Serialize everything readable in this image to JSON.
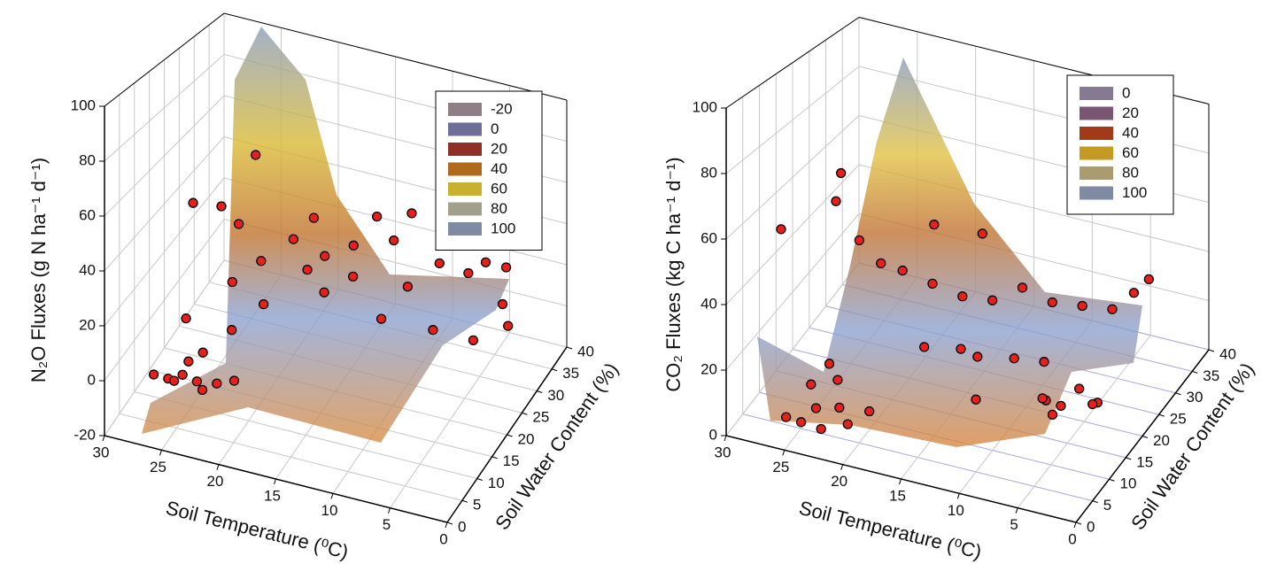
{
  "chart_data": [
    {
      "type": "scatter3d",
      "xlabel": "Soil Temperature (⁰C)",
      "ylabel": "Soil Water Content (%)",
      "zlabel": "N₂O Fluxes (g N ha⁻¹ d⁻¹)",
      "xlim": [
        0,
        30
      ],
      "xticks": [
        0,
        5,
        10,
        15,
        20,
        25,
        30
      ],
      "ylim": [
        0,
        40
      ],
      "yticks": [
        0,
        5,
        10,
        15,
        20,
        25,
        30,
        35,
        40
      ],
      "zlim": [
        -20,
        100
      ],
      "zticks": [
        -20,
        0,
        20,
        40,
        60,
        80,
        100
      ],
      "grid": true,
      "marker_color": "#e8201c",
      "legend_levels": [
        -20,
        0,
        20,
        40,
        60,
        80,
        100
      ],
      "legend_colors": [
        "#8e7f87",
        "#6e6e98",
        "#8f3028",
        "#b06a1e",
        "#c8b030",
        "#a2a08c",
        "#7f8ba3"
      ],
      "x": [
        27,
        26,
        25,
        24,
        25,
        23,
        22,
        26,
        24,
        21,
        22,
        28,
        25,
        24,
        20,
        22,
        20,
        18,
        17,
        16,
        15,
        14,
        12,
        10,
        8,
        6,
        5,
        4,
        3,
        2,
        14,
        12,
        9,
        19,
        23,
        21,
        11,
        7,
        4,
        26
      ],
      "y": [
        5,
        6,
        7,
        8,
        9,
        6,
        7,
        8,
        10,
        9,
        20,
        22,
        20,
        22,
        15,
        12,
        25,
        22,
        24,
        20,
        26,
        22,
        28,
        25,
        28,
        30,
        32,
        35,
        30,
        28,
        30,
        34,
        33,
        28,
        16,
        18,
        20,
        22,
        24,
        12
      ],
      "z": [
        -2,
        -4,
        -3,
        -6,
        -1,
        -5,
        -3,
        -8,
        2,
        -4,
        70,
        40,
        45,
        36,
        18,
        10,
        30,
        24,
        28,
        20,
        32,
        26,
        35,
        22,
        30,
        25,
        28,
        22,
        15,
        10,
        40,
        38,
        32,
        36,
        22,
        30,
        15,
        12,
        8,
        10
      ]
    },
    {
      "type": "scatter3d",
      "xlabel": "Soil Temperature (⁰C)",
      "ylabel": "Soil Water Content (%)",
      "zlabel": "CO₂ Fluxes (kg C ha⁻¹ d⁻¹)",
      "xlim": [
        0,
        30
      ],
      "xticks": [
        0,
        5,
        10,
        15,
        20,
        25,
        30
      ],
      "ylim": [
        0,
        40
      ],
      "yticks": [
        0,
        5,
        10,
        15,
        20,
        25,
        30,
        35,
        40
      ],
      "zlim": [
        0,
        100
      ],
      "zticks": [
        0,
        20,
        40,
        60,
        80,
        100
      ],
      "grid": true,
      "marker_color": "#e8201c",
      "legend_levels": [
        0,
        20,
        40,
        60,
        80,
        100
      ],
      "legend_colors": [
        "#857a92",
        "#7b5670",
        "#a23a1a",
        "#c49a22",
        "#a89c70",
        "#7f8ba3"
      ],
      "x": [
        26,
        25,
        24,
        23,
        22,
        21,
        25,
        23,
        20,
        24,
        23,
        24,
        27,
        22,
        21,
        20,
        18,
        16,
        14,
        12,
        10,
        8,
        6,
        15,
        13,
        11,
        9,
        17,
        19,
        16,
        5,
        4,
        2,
        3,
        1,
        2,
        4,
        6,
        12,
        8
      ],
      "y": [
        4,
        5,
        6,
        4,
        6,
        5,
        8,
        9,
        8,
        10,
        10,
        12,
        6,
        12,
        15,
        18,
        20,
        22,
        24,
        26,
        28,
        30,
        32,
        18,
        16,
        20,
        22,
        14,
        24,
        28,
        35,
        36,
        8,
        6,
        10,
        12,
        5,
        14,
        12,
        18
      ],
      "z": [
        4,
        2,
        6,
        3,
        8,
        5,
        10,
        12,
        6,
        15,
        78,
        66,
        60,
        55,
        45,
        40,
        35,
        30,
        28,
        32,
        26,
        24,
        22,
        18,
        20,
        16,
        14,
        22,
        50,
        45,
        25,
        30,
        30,
        26,
        24,
        20,
        28,
        10,
        12,
        8
      ]
    }
  ]
}
